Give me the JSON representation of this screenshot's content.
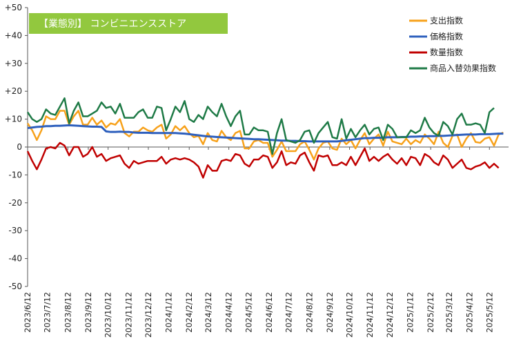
{
  "chart_data": {
    "type": "line",
    "title": "【業態別】 コンビニエンスストア",
    "ylim": [
      -50,
      50
    ],
    "y_ticks": [
      "+50",
      "+40",
      "+30",
      "+20",
      "+10",
      "0",
      "-10",
      "-20",
      "-30",
      "-40",
      "-50"
    ],
    "x_ticks": [
      "2023/6/12",
      "2023/7/12",
      "2023/8/12",
      "2023/9/12",
      "2023/10/12",
      "2023/11/12",
      "2023/12/12",
      "2024/1/12",
      "2024/2/12",
      "2024/3/12",
      "2024/4/12",
      "2024/5/12",
      "2024/6/12",
      "2024/7/12",
      "2024/8/12",
      "2024/9/12",
      "2024/10/12",
      "2024/11/12",
      "2024/12/12",
      "2025/1/12",
      "2025/2/12",
      "2025/3/12",
      "2025/4/12",
      "2025/5/12"
    ],
    "x_start": "2023-06-12",
    "x_end": "2025-06-10",
    "colors": {
      "title_bg": "#92c83e",
      "axis": "#555555",
      "grid": "#d9d9d9"
    },
    "series": [
      {
        "name": "支出指数",
        "color": "#f7a11a",
        "values": [
          8.5,
          6,
          2.5,
          6,
          11,
          10,
          10,
          13,
          13,
          8,
          11,
          13,
          8,
          8,
          10.5,
          8,
          9.5,
          7,
          8.5,
          8,
          10,
          5,
          3.8,
          5.5,
          5.5,
          7,
          6,
          5.5,
          7,
          8,
          3,
          4.5,
          7.5,
          6,
          7.5,
          5,
          3.5,
          4,
          1,
          5,
          2.5,
          2,
          5.8,
          3.5,
          2.5,
          5,
          5.8,
          -0.5,
          -0.5,
          2,
          2.5,
          1.5,
          1.5,
          -3.5,
          -1,
          2,
          -1.5,
          -1.5,
          -1.5,
          1,
          2,
          -1,
          -4.5,
          -0.5,
          1.5,
          2,
          -0.5,
          -1,
          3,
          1,
          2.5,
          -0.5,
          2.5,
          5,
          1,
          3,
          4.5,
          0.5,
          5.5,
          2,
          1.5,
          1,
          3,
          1,
          2.5,
          1.5,
          4.5,
          3,
          1,
          5.5,
          1.5,
          0,
          4,
          4.5,
          0,
          3,
          5,
          1.8,
          1.5,
          3,
          3.5,
          0.5,
          4.5,
          5.2
        ]
      },
      {
        "name": "価格指数",
        "color": "#2d5fbd",
        "values": [
          6.8,
          7,
          7.2,
          7.3,
          7.5,
          7.5,
          7.6,
          7.6,
          7.7,
          7.8,
          7.7,
          7.6,
          7.5,
          7.4,
          7.3,
          7.3,
          7.2,
          5.6,
          5.4,
          5.4,
          5.5,
          5.4,
          5.4,
          5.2,
          5.1,
          5.1,
          5.1,
          5,
          5,
          5,
          5,
          5,
          5,
          4.9,
          4.8,
          4.6,
          4.4,
          4.2,
          4,
          3.8,
          3.7,
          3.6,
          3.5,
          3.4,
          3.3,
          3.2,
          3.1,
          3,
          2.9,
          2.8,
          2.8,
          2.7,
          2.6,
          2.5,
          2.4,
          2.3,
          2.3,
          2.2,
          2.2,
          2.1,
          2.1,
          2,
          2,
          2,
          2,
          2,
          2,
          2,
          2.2,
          2.4,
          2.6,
          2.8,
          3,
          3.2,
          3.2,
          3.3,
          3.3,
          3.4,
          3.5,
          3.5,
          3.5,
          3.6,
          3.6,
          3.7,
          3.7,
          3.8,
          3.8,
          3.9,
          3.9,
          4,
          4,
          4.1,
          4.2,
          4.3,
          4.4,
          4.5,
          4.5,
          4.5,
          4.6,
          4.6,
          4.6,
          4.7,
          4.8,
          4.8
        ]
      },
      {
        "name": "数量指数",
        "color": "#c00000",
        "values": [
          -1.5,
          -5,
          -8,
          -4.5,
          -0.5,
          0,
          -0.5,
          1.5,
          0.5,
          -3,
          0,
          0,
          -3.5,
          -2.5,
          0,
          -3.5,
          -2.5,
          -5,
          -4,
          -3.5,
          -3,
          -6,
          -7.5,
          -5,
          -6,
          -5.5,
          -5,
          -5,
          -5,
          -3.5,
          -6,
          -4.5,
          -4,
          -4.5,
          -4,
          -4.5,
          -5.5,
          -7,
          -11,
          -6.5,
          -8.5,
          -8.5,
          -5,
          -4.5,
          -5,
          -2.5,
          -3,
          -6,
          -7,
          -4.5,
          -4.5,
          -3,
          -3.5,
          -7.5,
          -5.5,
          -1.5,
          -6.5,
          -5.5,
          -6,
          -3,
          -2,
          -5.5,
          -8.5,
          -3,
          -3.5,
          -3,
          -6.5,
          -6.5,
          -5.5,
          -6.5,
          -3.5,
          -6.5,
          -3.5,
          -0.5,
          -5,
          -3.5,
          -5,
          -3.5,
          -2.5,
          -4.5,
          -6,
          -4,
          -6.5,
          -3.5,
          -4,
          -6.5,
          -2.5,
          -3.5,
          -5.5,
          -6.5,
          -3,
          -4.5,
          -7.5,
          -6,
          -4.5,
          -7.5,
          -8,
          -7,
          -6.5,
          -5.5,
          -7.5,
          -6,
          -7.5
        ]
      },
      {
        "name": "商品入替効果指数",
        "color": "#1e7a46",
        "values": [
          12.5,
          10,
          9,
          10,
          13.5,
          12,
          11.5,
          14.5,
          17.5,
          8.5,
          13,
          16,
          11,
          11,
          12,
          13,
          16,
          14,
          14.5,
          12,
          15.5,
          10.5,
          10.5,
          10.5,
          12.5,
          13.5,
          10.5,
          10.5,
          14.5,
          14,
          6,
          10,
          14.5,
          12.5,
          16.5,
          10,
          9,
          11.5,
          10,
          14.5,
          12.5,
          11,
          15.5,
          11,
          7.5,
          11,
          13,
          4.5,
          4.5,
          7,
          6,
          6,
          5.5,
          -2.5,
          5,
          10,
          2.5,
          2,
          1.5,
          2.5,
          5.5,
          6,
          1.5,
          5,
          7,
          9,
          3.5,
          3,
          10,
          3,
          6.5,
          3.5,
          6,
          8,
          4.5,
          6.5,
          7,
          2.5,
          8,
          6.5,
          3.5,
          3.5,
          3.5,
          6,
          5,
          6,
          10.5,
          7,
          5,
          4,
          9,
          7.5,
          4.5,
          10,
          12,
          8,
          8,
          8.5,
          8,
          5,
          12.5,
          14
        ]
      }
    ],
    "legend_position": "top-right",
    "grid": false
  }
}
